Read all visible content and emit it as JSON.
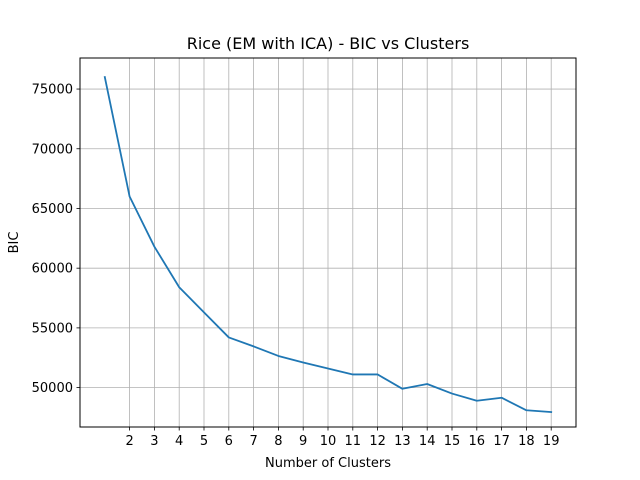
{
  "chart_data": {
    "type": "line",
    "title": "Rice (EM with ICA) - BIC vs Clusters",
    "xlabel": "Number of Clusters",
    "ylabel": "BIC",
    "x_ticks": [
      2,
      3,
      4,
      5,
      6,
      7,
      8,
      9,
      10,
      11,
      12,
      13,
      14,
      15,
      16,
      17,
      18,
      19
    ],
    "y_ticks": [
      50000,
      55000,
      60000,
      65000,
      70000,
      75000
    ],
    "xlim": [
      0,
      20
    ],
    "ylim": [
      46700,
      77600
    ],
    "grid": true,
    "series": [
      {
        "color": "#1f77b4",
        "x": [
          1,
          2,
          3,
          4,
          5,
          6,
          7,
          8,
          9,
          10,
          11,
          12,
          13,
          14,
          15,
          16,
          17,
          18,
          19
        ],
        "values": [
          76000,
          66000,
          61800,
          58400,
          56300,
          54200,
          53450,
          52650,
          52100,
          51600,
          51100,
          51100,
          49900,
          50300,
          49500,
          48900,
          49150,
          48100,
          47950
        ]
      }
    ]
  }
}
